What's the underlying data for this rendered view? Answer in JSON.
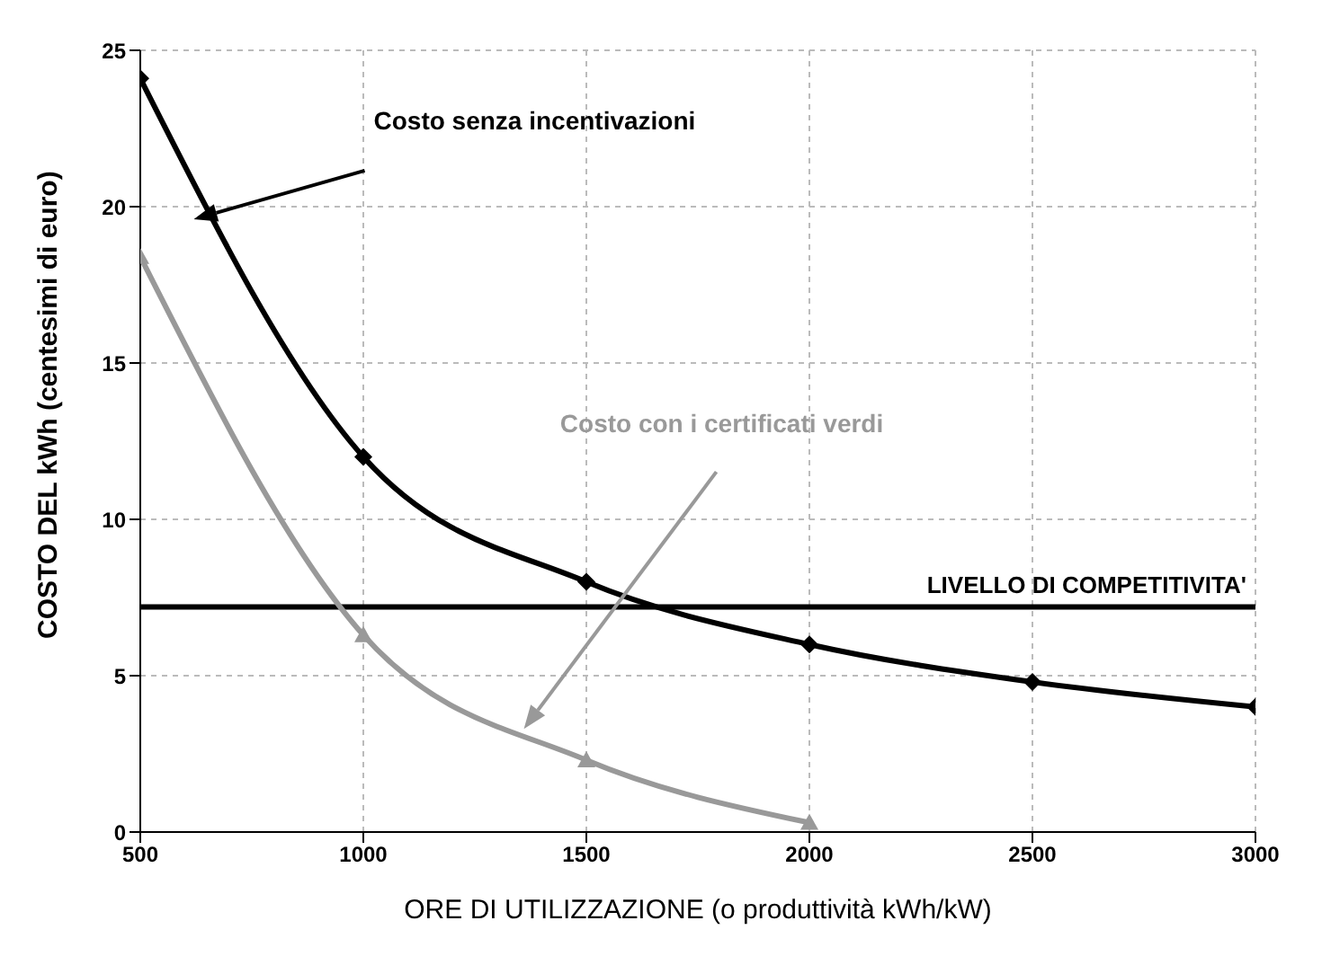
{
  "chart_data": {
    "type": "line",
    "xlabel": "ORE DI UTILIZZAZIONE (o produttività kWh/kW)",
    "ylabel": "COSTO DEL kWh (centesimi di euro)",
    "x": [
      500,
      1000,
      1500,
      2000,
      2500,
      3000
    ],
    "series": [
      {
        "color": "#000000",
        "marker": "diamond",
        "values": [
          24.1,
          12,
          8,
          6,
          4.8,
          4
        ]
      },
      {
        "color": "#999999",
        "marker": "triangle",
        "x": [
          500,
          1000,
          1500,
          2000
        ],
        "values": [
          18.4,
          6.3,
          2.3,
          0.3
        ]
      }
    ],
    "xlim": [
      500,
      3000
    ],
    "xticks": [
      500,
      1000,
      1500,
      2000,
      2500,
      3000
    ],
    "ylim": [
      0,
      25
    ],
    "yticks": [
      0,
      5,
      10,
      15,
      20,
      25
    ],
    "grid": true,
    "line_style": "solid",
    "ref_lines": [
      {
        "axis": "y",
        "value": 7.2,
        "label": "LIVELLO DI COMPETITIVITA'",
        "color": "#000000"
      }
    ],
    "annotations": [
      "Costo senza incentivazioni",
      "Costo con i certificati verdi"
    ]
  }
}
